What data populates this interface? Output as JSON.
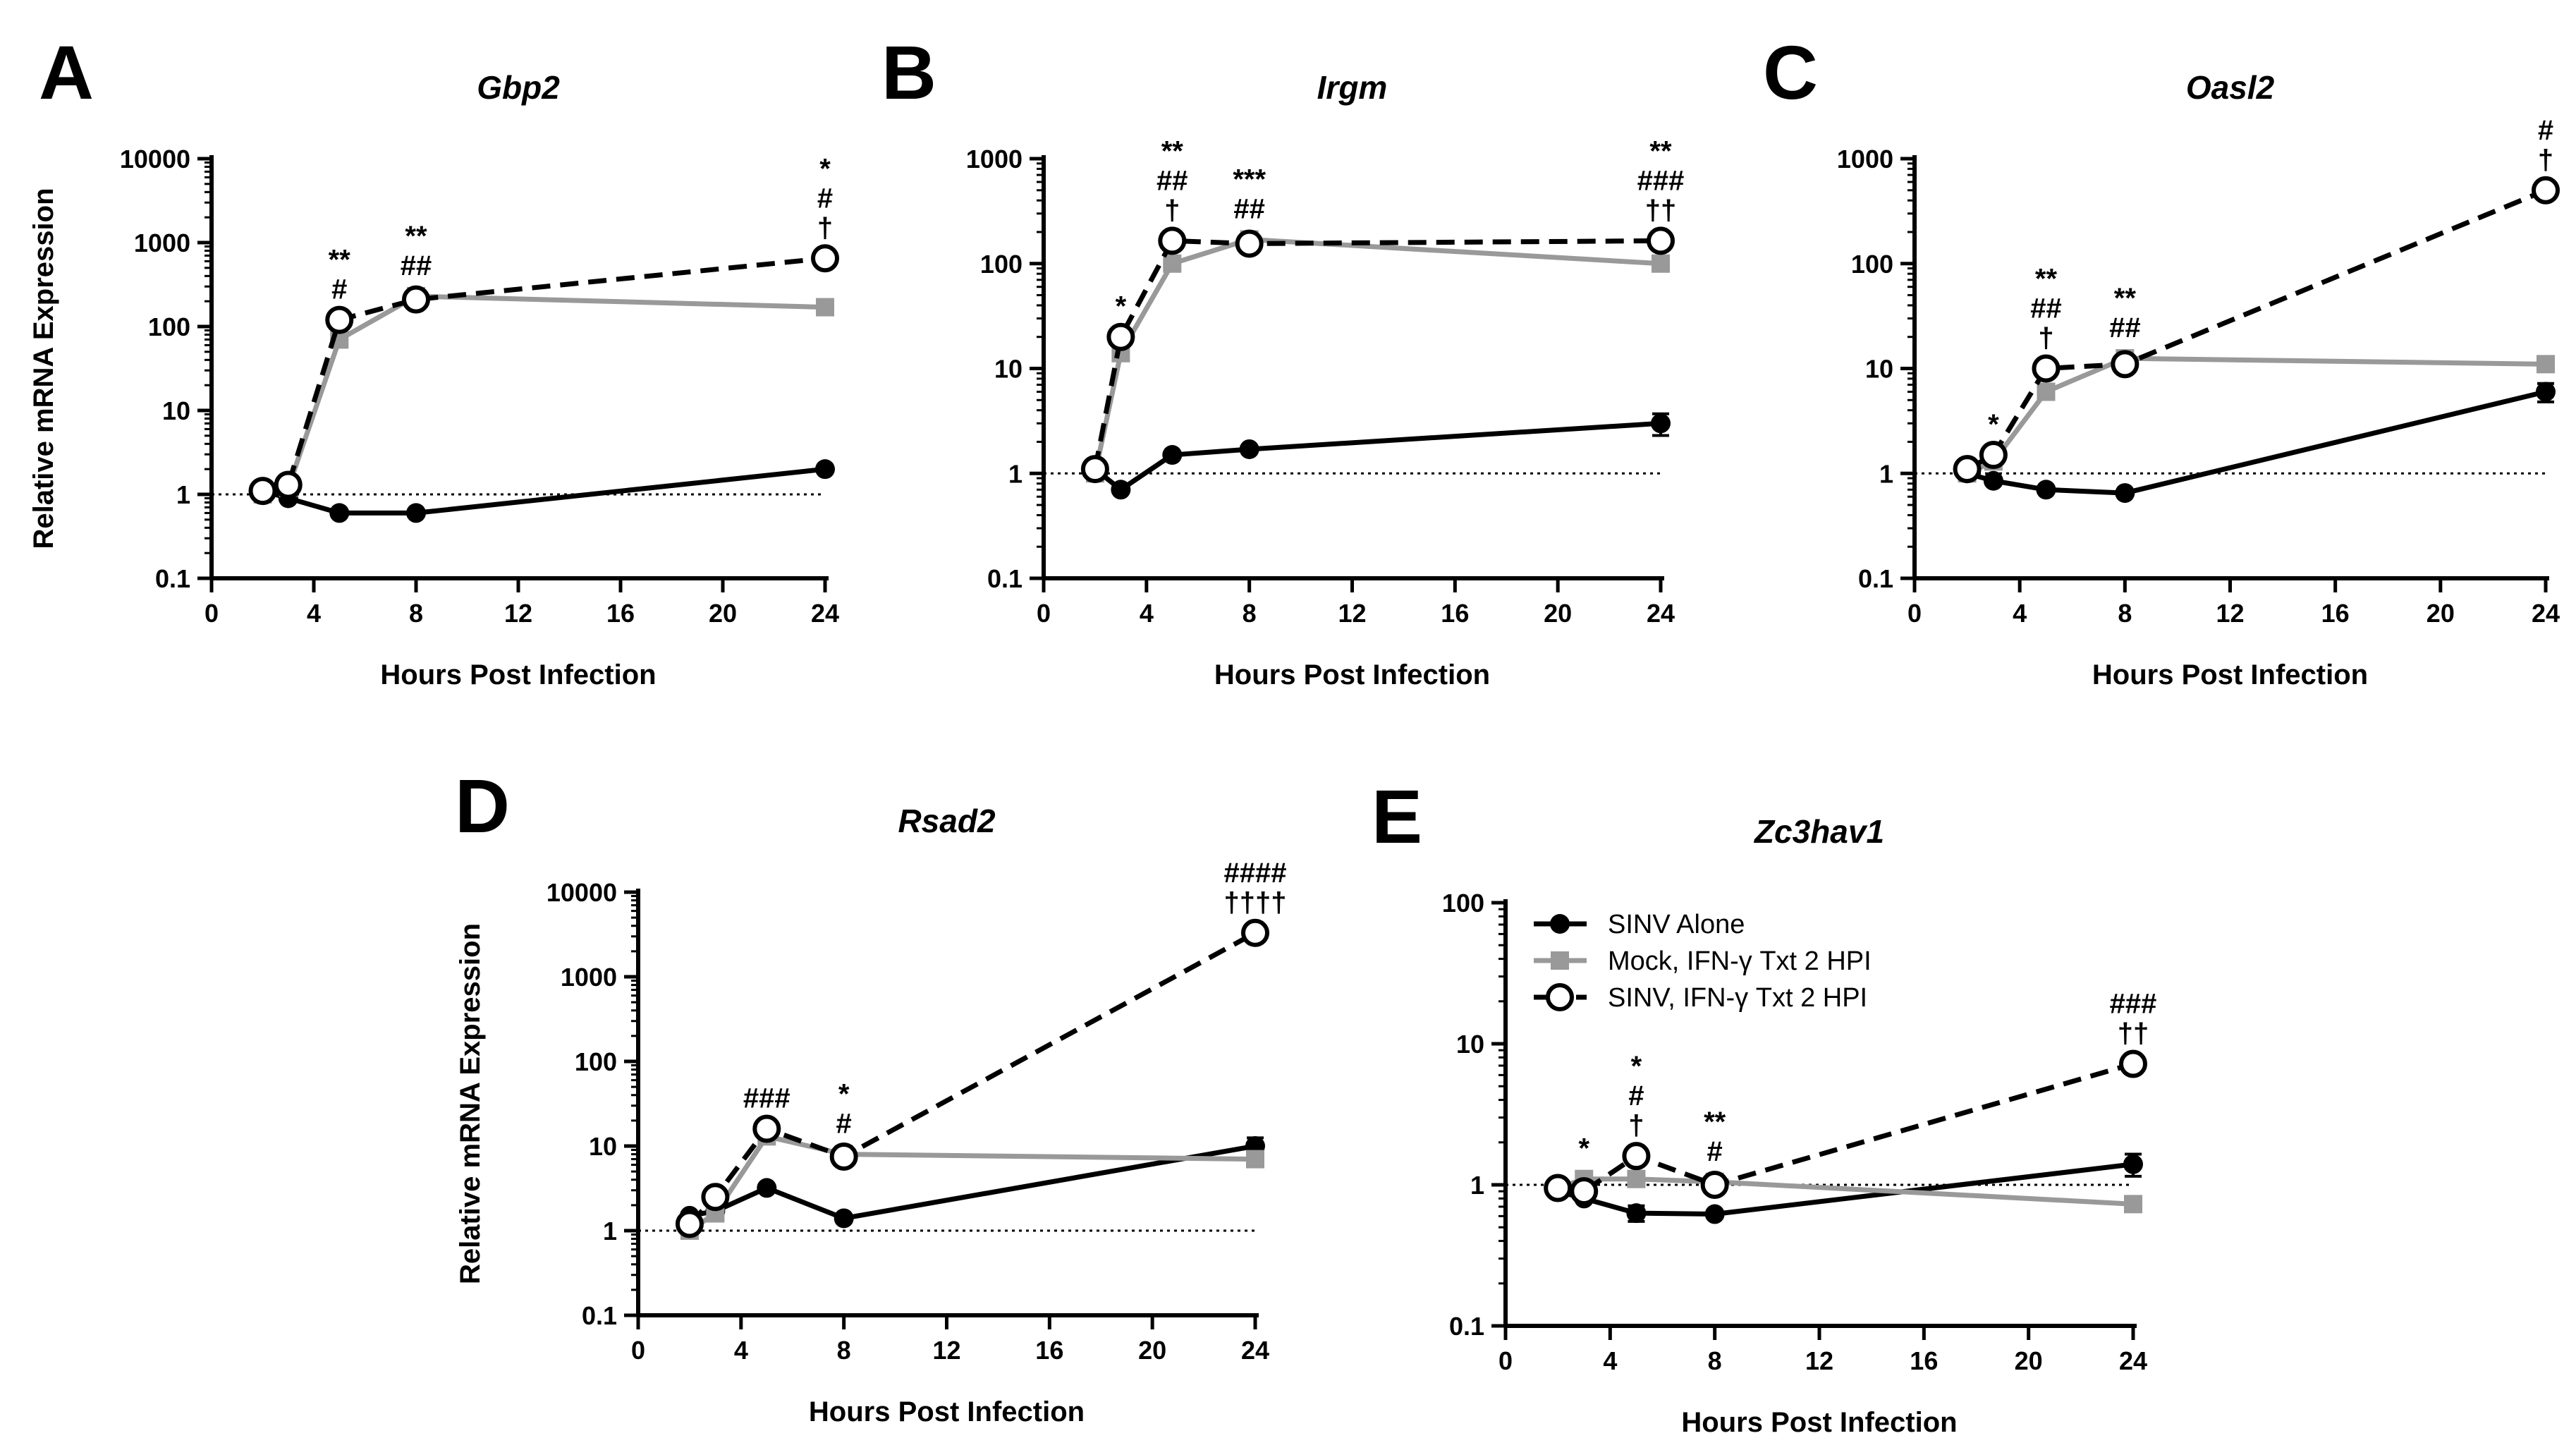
{
  "colors": {
    "sinv_alone": "#000000",
    "mock_ifn": "#999999",
    "sinv_ifn": "#000000",
    "background": "#ffffff"
  },
  "legend": {
    "entries": [
      {
        "label": "SINV Alone",
        "marker": "filled-circle",
        "line": "solid",
        "color": "#000000"
      },
      {
        "label": "Mock, IFN-γ Txt 2 HPI",
        "marker": "filled-square",
        "line": "solid",
        "color": "#999999"
      },
      {
        "label": "SINV, IFN-γ Txt 2 HPI",
        "marker": "open-circle",
        "line": "dashed",
        "color": "#000000"
      }
    ]
  },
  "chart_data": [
    {
      "panel": "A",
      "type": "line",
      "title": "Gbp2",
      "xlabel": "Hours Post Infection",
      "ylabel": "Relative mRNA Expression",
      "xlim": [
        0,
        24
      ],
      "xticks": [
        0,
        4,
        8,
        12,
        16,
        20,
        24
      ],
      "yscale": "log",
      "ylim": [
        0.1,
        10000
      ],
      "yticks": [
        "0.1",
        "1",
        "10",
        "100",
        "1000",
        "10000"
      ],
      "reference_line": 1,
      "series": [
        {
          "name": "SINV Alone",
          "x": [
            2,
            3,
            5,
            8,
            24
          ],
          "y": [
            1.1,
            0.9,
            0.6,
            0.6,
            2.0
          ]
        },
        {
          "name": "Mock, IFN-γ Txt 2 HPI",
          "x": [
            2,
            3,
            5,
            8,
            24
          ],
          "y": [
            1.0,
            1.2,
            70,
            230,
            170
          ]
        },
        {
          "name": "SINV, IFN-γ Txt 2 HPI",
          "x": [
            2,
            3,
            5,
            8,
            24
          ],
          "y": [
            1.1,
            1.3,
            120,
            210,
            650
          ]
        }
      ],
      "annotations": [
        {
          "x": 5,
          "lines": [
            "**",
            "#"
          ]
        },
        {
          "x": 8,
          "lines": [
            "**",
            "##"
          ]
        },
        {
          "x": 24,
          "lines": [
            "*",
            "#",
            "†"
          ]
        }
      ]
    },
    {
      "panel": "B",
      "type": "line",
      "title": "Irgm",
      "xlabel": "Hours Post Infection",
      "ylabel": "",
      "xlim": [
        0,
        24
      ],
      "xticks": [
        0,
        4,
        8,
        12,
        16,
        20,
        24
      ],
      "yscale": "log",
      "ylim": [
        0.1,
        1000
      ],
      "yticks": [
        "0.1",
        "1",
        "10",
        "100",
        "1000"
      ],
      "reference_line": 1,
      "series": [
        {
          "name": "SINV Alone",
          "x": [
            2,
            3,
            5,
            8,
            24
          ],
          "y": [
            1.1,
            0.7,
            1.5,
            1.7,
            3.0
          ],
          "error": [
            0,
            0,
            0,
            0,
            0.7
          ]
        },
        {
          "name": "Mock, IFN-γ Txt 2 HPI",
          "x": [
            2,
            3,
            5,
            8,
            24
          ],
          "y": [
            1.0,
            14,
            100,
            170,
            100
          ]
        },
        {
          "name": "SINV, IFN-γ Txt 2 HPI",
          "x": [
            2,
            3,
            5,
            8,
            24
          ],
          "y": [
            1.1,
            20,
            165,
            155,
            165
          ]
        }
      ],
      "annotations": [
        {
          "x": 3,
          "lines": [
            "*"
          ]
        },
        {
          "x": 5,
          "lines": [
            "**",
            "##",
            "†"
          ]
        },
        {
          "x": 8,
          "lines": [
            "***",
            "##"
          ]
        },
        {
          "x": 24,
          "lines": [
            "**",
            "###",
            "††"
          ]
        }
      ]
    },
    {
      "panel": "C",
      "type": "line",
      "title": "Oasl2",
      "xlabel": "Hours Post Infection",
      "ylabel": "",
      "xlim": [
        0,
        24
      ],
      "xticks": [
        0,
        4,
        8,
        12,
        16,
        20,
        24
      ],
      "yscale": "log",
      "ylim": [
        0.1,
        1000
      ],
      "yticks": [
        "0.1",
        "1",
        "10",
        "100",
        "1000"
      ],
      "reference_line": 1,
      "series": [
        {
          "name": "SINV Alone",
          "x": [
            2,
            3,
            5,
            8,
            24
          ],
          "y": [
            1.0,
            0.85,
            0.7,
            0.65,
            6.0
          ],
          "error": [
            0,
            0,
            0,
            0,
            1.2
          ]
        },
        {
          "name": "Mock, IFN-γ Txt 2 HPI",
          "x": [
            2,
            3,
            5,
            8,
            24
          ],
          "y": [
            1.0,
            1.3,
            6.0,
            12.5,
            11.0
          ]
        },
        {
          "name": "SINV, IFN-γ Txt 2 HPI",
          "x": [
            2,
            3,
            5,
            8,
            24
          ],
          "y": [
            1.1,
            1.5,
            10,
            11,
            500
          ]
        }
      ],
      "annotations": [
        {
          "x": 3,
          "lines": [
            "*"
          ]
        },
        {
          "x": 5,
          "lines": [
            "**",
            "##",
            "†"
          ]
        },
        {
          "x": 8,
          "lines": [
            "**",
            "##"
          ]
        },
        {
          "x": 24,
          "lines": [
            "#",
            "†"
          ]
        }
      ]
    },
    {
      "panel": "D",
      "type": "line",
      "title": "Rsad2",
      "xlabel": "Hours Post Infection",
      "ylabel": "Relative mRNA Expression",
      "xlim": [
        0,
        24
      ],
      "xticks": [
        0,
        4,
        8,
        12,
        16,
        20,
        24
      ],
      "yscale": "log",
      "ylim": [
        0.1,
        10000
      ],
      "yticks": [
        "0.1",
        "1",
        "10",
        "100",
        "1000",
        "10000"
      ],
      "reference_line": 1,
      "series": [
        {
          "name": "SINV Alone",
          "x": [
            2,
            3,
            5,
            8,
            24
          ],
          "y": [
            1.5,
            1.7,
            3.2,
            1.4,
            10
          ],
          "error": [
            0,
            0,
            0,
            0,
            2.5
          ]
        },
        {
          "name": "Mock, IFN-γ Txt 2 HPI",
          "x": [
            2,
            3,
            5,
            8,
            24
          ],
          "y": [
            1.0,
            1.6,
            13,
            8,
            7
          ]
        },
        {
          "name": "SINV, IFN-γ Txt 2 HPI",
          "x": [
            2,
            3,
            5,
            8,
            24
          ],
          "y": [
            1.2,
            2.5,
            16,
            7.5,
            3300
          ]
        }
      ],
      "annotations": [
        {
          "x": 5,
          "lines": [
            "###"
          ]
        },
        {
          "x": 8,
          "lines": [
            "*",
            "#"
          ]
        },
        {
          "x": 24,
          "lines": [
            "####",
            "††††"
          ]
        }
      ]
    },
    {
      "panel": "E",
      "type": "line",
      "title": "Zc3hav1",
      "xlabel": "Hours Post Infection",
      "ylabel": "",
      "xlim": [
        0,
        24
      ],
      "xticks": [
        0,
        4,
        8,
        12,
        16,
        20,
        24
      ],
      "yscale": "log",
      "ylim": [
        0.1,
        100
      ],
      "yticks": [
        "0.1",
        "1",
        "10",
        "100"
      ],
      "reference_line": 1,
      "series": [
        {
          "name": "SINV Alone",
          "x": [
            2,
            3,
            5,
            8,
            24
          ],
          "y": [
            0.9,
            0.8,
            0.63,
            0.62,
            1.4
          ],
          "error": [
            0,
            0,
            0.08,
            0,
            0.25
          ]
        },
        {
          "name": "Mock, IFN-γ Txt 2 HPI",
          "x": [
            2,
            3,
            5,
            8,
            24
          ],
          "y": [
            0.95,
            1.1,
            1.1,
            1.05,
            0.73
          ]
        },
        {
          "name": "SINV, IFN-γ Txt 2 HPI",
          "x": [
            2,
            3,
            5,
            8,
            24
          ],
          "y": [
            0.95,
            0.9,
            1.6,
            1.0,
            7.2
          ]
        }
      ],
      "annotations": [
        {
          "x": 3,
          "lines": [
            "*"
          ]
        },
        {
          "x": 5,
          "lines": [
            "*",
            "#",
            "†"
          ]
        },
        {
          "x": 8,
          "lines": [
            "**",
            "#"
          ]
        },
        {
          "x": 24,
          "lines": [
            "###",
            "††"
          ]
        }
      ]
    }
  ]
}
